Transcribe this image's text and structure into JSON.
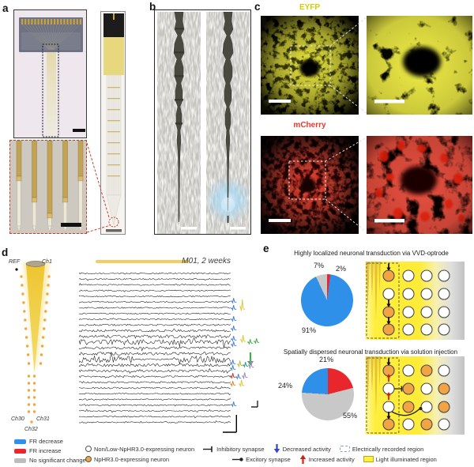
{
  "panel_labels": {
    "a": "a",
    "b": "b",
    "c": "c",
    "d": "d",
    "e": "e"
  },
  "panel_c": {
    "eyfp": "EYFP",
    "mcherry": "mCherry",
    "eyfp_color": "#cfcf00",
    "mcherry_color": "#e8392c"
  },
  "panel_d": {
    "session_label": "M01, 2 weeks",
    "ref": "REF",
    "ch1": "Ch1",
    "ch30": "Ch30",
    "ch31": "Ch31",
    "ch32": "Ch32"
  },
  "panel_e": {
    "colors": {
      "expressing": "#f2a444",
      "non_expressing": "#ffffff",
      "light_region": "#ffee3e"
    },
    "sections": [
      {
        "title": "Highly localized neuronal transduction via VVD-optrode",
        "grid": [
          [
            "o",
            "w",
            "w",
            "w"
          ],
          [
            "w",
            "w",
            "w",
            "w"
          ],
          [
            "o",
            "w",
            "w",
            "w"
          ],
          [
            "o",
            "w",
            "w",
            "w"
          ]
        ],
        "marks": [
          "down",
          null,
          "down",
          "down"
        ],
        "connections": []
      },
      {
        "title": "Spatially dispersed neuronal transduction via solution injection",
        "grid": [
          [
            "o",
            "w",
            "o",
            "w"
          ],
          [
            "w",
            "o",
            "w",
            "o"
          ],
          [
            "w",
            "o",
            "w",
            "o"
          ],
          [
            "o",
            "w",
            "o",
            "w"
          ]
        ],
        "marks": [
          "down",
          "up",
          "up",
          "down"
        ],
        "connections": [
          {
            "type": "inhibitory",
            "row": 1,
            "from_col": 0,
            "to_col": 1
          },
          {
            "type": "excitatory",
            "row": 2,
            "from_col": 0,
            "to_col": 2
          }
        ]
      }
    ]
  },
  "legend": {
    "fr_decrease": "FR decrease",
    "fr_increase": "FR increase",
    "no_change": "No significant change",
    "non_expressing": "Non/Low-NpHR3.0-expressing neuron",
    "expressing": "NpHR3.0-expressing neuron",
    "inhibitory": "Inhibitory synapse",
    "excitatory": "Excitory synapse",
    "decreased": "Decreased activity",
    "increased": "Increased activity",
    "recorded": "Electrically recorded region",
    "illuminated": "Light illuminated region",
    "colors": {
      "decrease": "#2e90e8",
      "increase": "#e8262b",
      "no_change": "#bdbdbd"
    }
  },
  "chart_data": [
    {
      "type": "pie",
      "title": "Highly localized neuronal transduction via VVD-optrode",
      "slices": [
        {
          "label": "2%",
          "value": 2,
          "color": "#e8262b"
        },
        {
          "label": "91%",
          "value": 91,
          "color": "#2e90e8"
        },
        {
          "label": "7%",
          "value": 7,
          "color": "#c8c8c8"
        }
      ],
      "start_angle_deg": 0,
      "clockwise": true,
      "legend_position": "none"
    },
    {
      "type": "pie",
      "title": "Spatially dispersed neuronal transduction via solution injection",
      "slices": [
        {
          "label": "21%",
          "value": 21,
          "color": "#e8262b"
        },
        {
          "label": "55%",
          "value": 55,
          "color": "#c8c8c8"
        },
        {
          "label": "24%",
          "value": 24,
          "color": "#2e90e8"
        }
      ],
      "start_angle_deg": 0,
      "clockwise": true,
      "legend_position": "none"
    }
  ]
}
